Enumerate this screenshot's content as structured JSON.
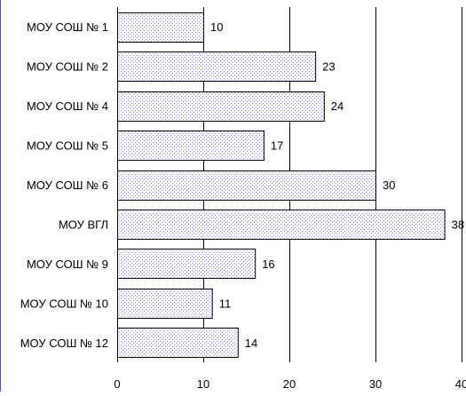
{
  "chart_data": {
    "type": "bar",
    "orientation": "horizontal",
    "categories": [
      "МОУ СОШ № 1",
      "МОУ СОШ № 2",
      "МОУ СОШ № 4",
      "МОУ СОШ № 5",
      "МОУ СОШ № 6",
      "МОУ ВГЛ",
      "МОУ СОШ № 9",
      "МОУ СОШ № 10",
      "МОУ СОШ № 12"
    ],
    "values": [
      10,
      23,
      24,
      17,
      30,
      38,
      16,
      11,
      14
    ],
    "xlim": [
      0,
      40
    ],
    "xticks": [
      0,
      10,
      20,
      30,
      40
    ],
    "grid": true,
    "legend": "none",
    "bar_color": "#d4d4f4",
    "bar_pattern": "dotted",
    "bar_stroke": "#000000",
    "frame_color": "#5a4e9c"
  }
}
